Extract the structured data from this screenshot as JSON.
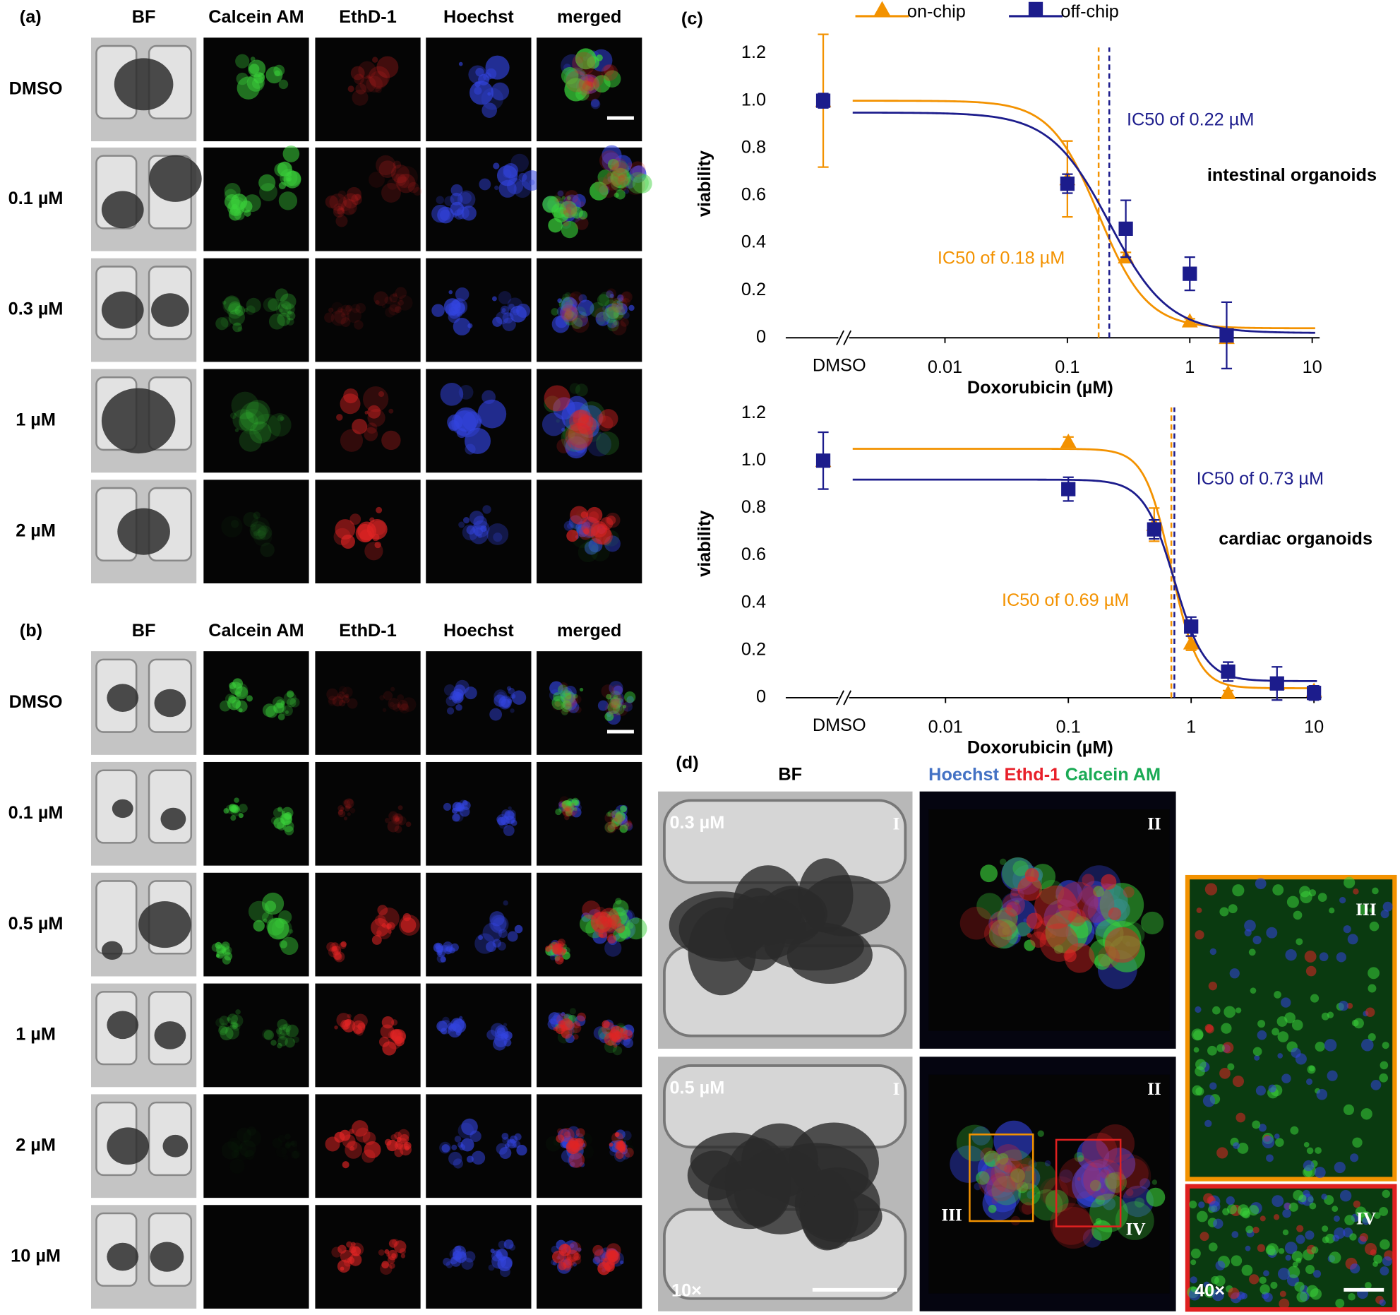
{
  "panel_a": {
    "label": "(a)",
    "columns": [
      "BF",
      "Calcein AM",
      "EthD-1",
      "Hoechst",
      "merged"
    ],
    "rows": [
      "DMSO",
      "0.1 µM",
      "0.3 µM",
      "1 µM",
      "2 µM"
    ]
  },
  "panel_b": {
    "label": "(b)",
    "columns": [
      "BF",
      "Calcein AM",
      "EthD-1",
      "Hoechst",
      "merged"
    ],
    "rows": [
      "DMSO",
      "0.1 µM",
      "0.5 µM",
      "1 µM",
      "2 µM",
      "10 µM"
    ]
  },
  "panel_c": {
    "label": "(c)"
  },
  "panel_d": {
    "label": "(d)",
    "bf_header": "BF",
    "stains": [
      {
        "text": "Hoechst",
        "color": "#4472c4"
      },
      {
        "text": "Ethd-1",
        "color": "#e8202a"
      },
      {
        "text": "Calcein AM",
        "color": "#1aaa55"
      }
    ],
    "rows": [
      {
        "concentration": "0.3 µM",
        "bf_tag": "I",
        "fluo_tag": "II"
      },
      {
        "concentration": "0.5 µM",
        "bf_tag": "I",
        "fluo_tag": "II"
      }
    ],
    "regions": [
      "III",
      "IV"
    ],
    "insets": [
      "III",
      "IV"
    ],
    "magnifications": [
      "10×",
      "40×"
    ]
  },
  "chart_data": [
    {
      "type": "scatter",
      "xscale": "log",
      "xlim": [
        0.0005,
        11.5
      ],
      "xticks": [
        0.01,
        0.1,
        1,
        10
      ],
      "x_break_label": "DMSO",
      "ylim": [
        0,
        1.3
      ],
      "yticks": [
        0,
        0.2,
        0.4,
        0.6,
        0.8,
        {
          "value": 1,
          "label": "1.0"
        },
        1.2
      ],
      "xlabel": "Doxorubicin (µM)",
      "ylabel": "viability",
      "legend": "top",
      "series": [
        {
          "name": "on-chip",
          "color": "#f39200",
          "marker": "triangle",
          "dmso": 1.0,
          "dmso_error": 0.28,
          "x": [
            0.1,
            0.3,
            1,
            2
          ],
          "values": [
            0.67,
            0.34,
            0.07,
            0.0
          ],
          "errors": [
            0.16,
            0.02,
            0.01,
            0.01
          ],
          "fit": {
            "top": 1.0,
            "bottom": 0.04,
            "ic50": 0.18,
            "hill": 2.2
          }
        },
        {
          "name": "off-chip",
          "color": "#1c1c8c",
          "marker": "square",
          "dmso": 1.0,
          "dmso_error": 0.03,
          "x": [
            0.1,
            0.3,
            1,
            2
          ],
          "values": [
            0.65,
            0.46,
            0.27,
            0.01
          ],
          "errors": [
            0.04,
            0.12,
            0.07,
            0.14
          ],
          "fit": {
            "top": 0.95,
            "bottom": 0.02,
            "ic50": 0.22,
            "hill": 1.8
          }
        }
      ],
      "annotations": [
        {
          "text": "IC50 of 0.22 µM",
          "color": "#1c1c8c"
        },
        {
          "text": "intestinal organoids",
          "color": "#000000"
        },
        {
          "text": "IC50 of 0.18 µM",
          "color": "#f39200"
        }
      ]
    },
    {
      "type": "scatter",
      "xscale": "log",
      "xlim": [
        0.0005,
        11.5
      ],
      "xticks": [
        0.01,
        0.1,
        1,
        10
      ],
      "x_break_label": "DMSO",
      "ylim": [
        0,
        1.3
      ],
      "yticks": [
        0,
        0.2,
        0.4,
        0.6,
        0.8,
        {
          "value": 1,
          "label": "1.0"
        },
        1.2
      ],
      "xlabel": "Doxorubicin (µM)",
      "ylabel": "viability",
      "series": [
        {
          "name": "on-chip",
          "color": "#f39200",
          "marker": "triangle",
          "dmso": 1.0,
          "dmso_error": 0.02,
          "x": [
            0.1,
            0.5,
            1,
            2,
            5,
            10
          ],
          "values": [
            1.08,
            0.73,
            0.23,
            0.02,
            0.06,
            0.03
          ],
          "errors": [
            0.02,
            0.07,
            0.03,
            0.01,
            0.02,
            0.02
          ],
          "fit": {
            "top": 1.05,
            "bottom": 0.04,
            "ic50": 0.69,
            "hill": 4
          }
        },
        {
          "name": "off-chip",
          "color": "#1c1c8c",
          "marker": "square",
          "dmso": 1.0,
          "dmso_error": 0.12,
          "x": [
            0.1,
            0.5,
            1,
            2,
            5,
            10
          ],
          "values": [
            0.88,
            0.71,
            0.3,
            0.11,
            0.06,
            0.02
          ],
          "errors": [
            0.05,
            0.04,
            0.04,
            0.04,
            0.07,
            0.03
          ],
          "fit": {
            "top": 0.92,
            "bottom": 0.07,
            "ic50": 0.73,
            "hill": 3.5
          }
        }
      ],
      "annotations": [
        {
          "text": "IC50 of 0.73 µM",
          "color": "#1c1c8c"
        },
        {
          "text": "cardiac organoids",
          "color": "#000000"
        },
        {
          "text": "IC50 of 0.69 µM",
          "color": "#f39200"
        }
      ]
    }
  ]
}
